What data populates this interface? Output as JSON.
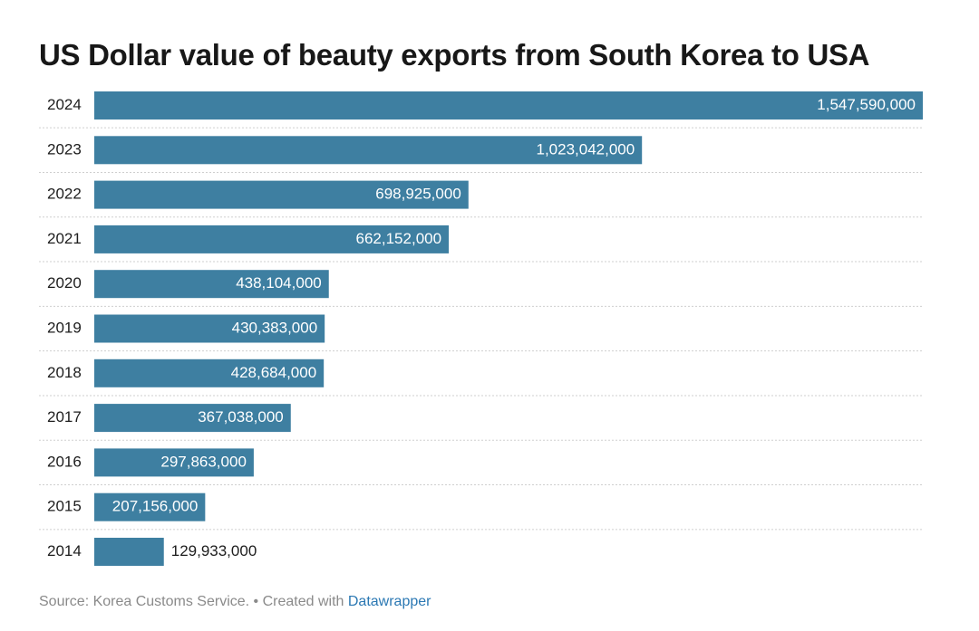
{
  "chart_data": {
    "type": "bar",
    "orientation": "horizontal",
    "title": "US Dollar value of beauty exports from South Korea to USA",
    "categories": [
      "2024",
      "2023",
      "2022",
      "2021",
      "2020",
      "2019",
      "2018",
      "2017",
      "2016",
      "2015",
      "2014"
    ],
    "values": [
      1547590000,
      1023042000,
      698925000,
      662152000,
      438104000,
      430383000,
      428684000,
      367038000,
      297863000,
      207156000,
      129933000
    ],
    "value_labels": [
      "1,547,590,000",
      "1,023,042,000",
      "698,925,000",
      "662,152,000",
      "438,104,000",
      "430,383,000",
      "428,684,000",
      "367,038,000",
      "297,863,000",
      "207,156,000",
      "129,933,000"
    ],
    "xlim": [
      0,
      1547590000
    ],
    "grid": false,
    "bar_color": "#3e7fa1",
    "label_color_inside": "#ffffff",
    "label_color_outside": "#1d1d1d"
  },
  "footer": {
    "source": "Source: Korea Customs Service.",
    "created": "• Created with",
    "link": "Datawrapper"
  }
}
